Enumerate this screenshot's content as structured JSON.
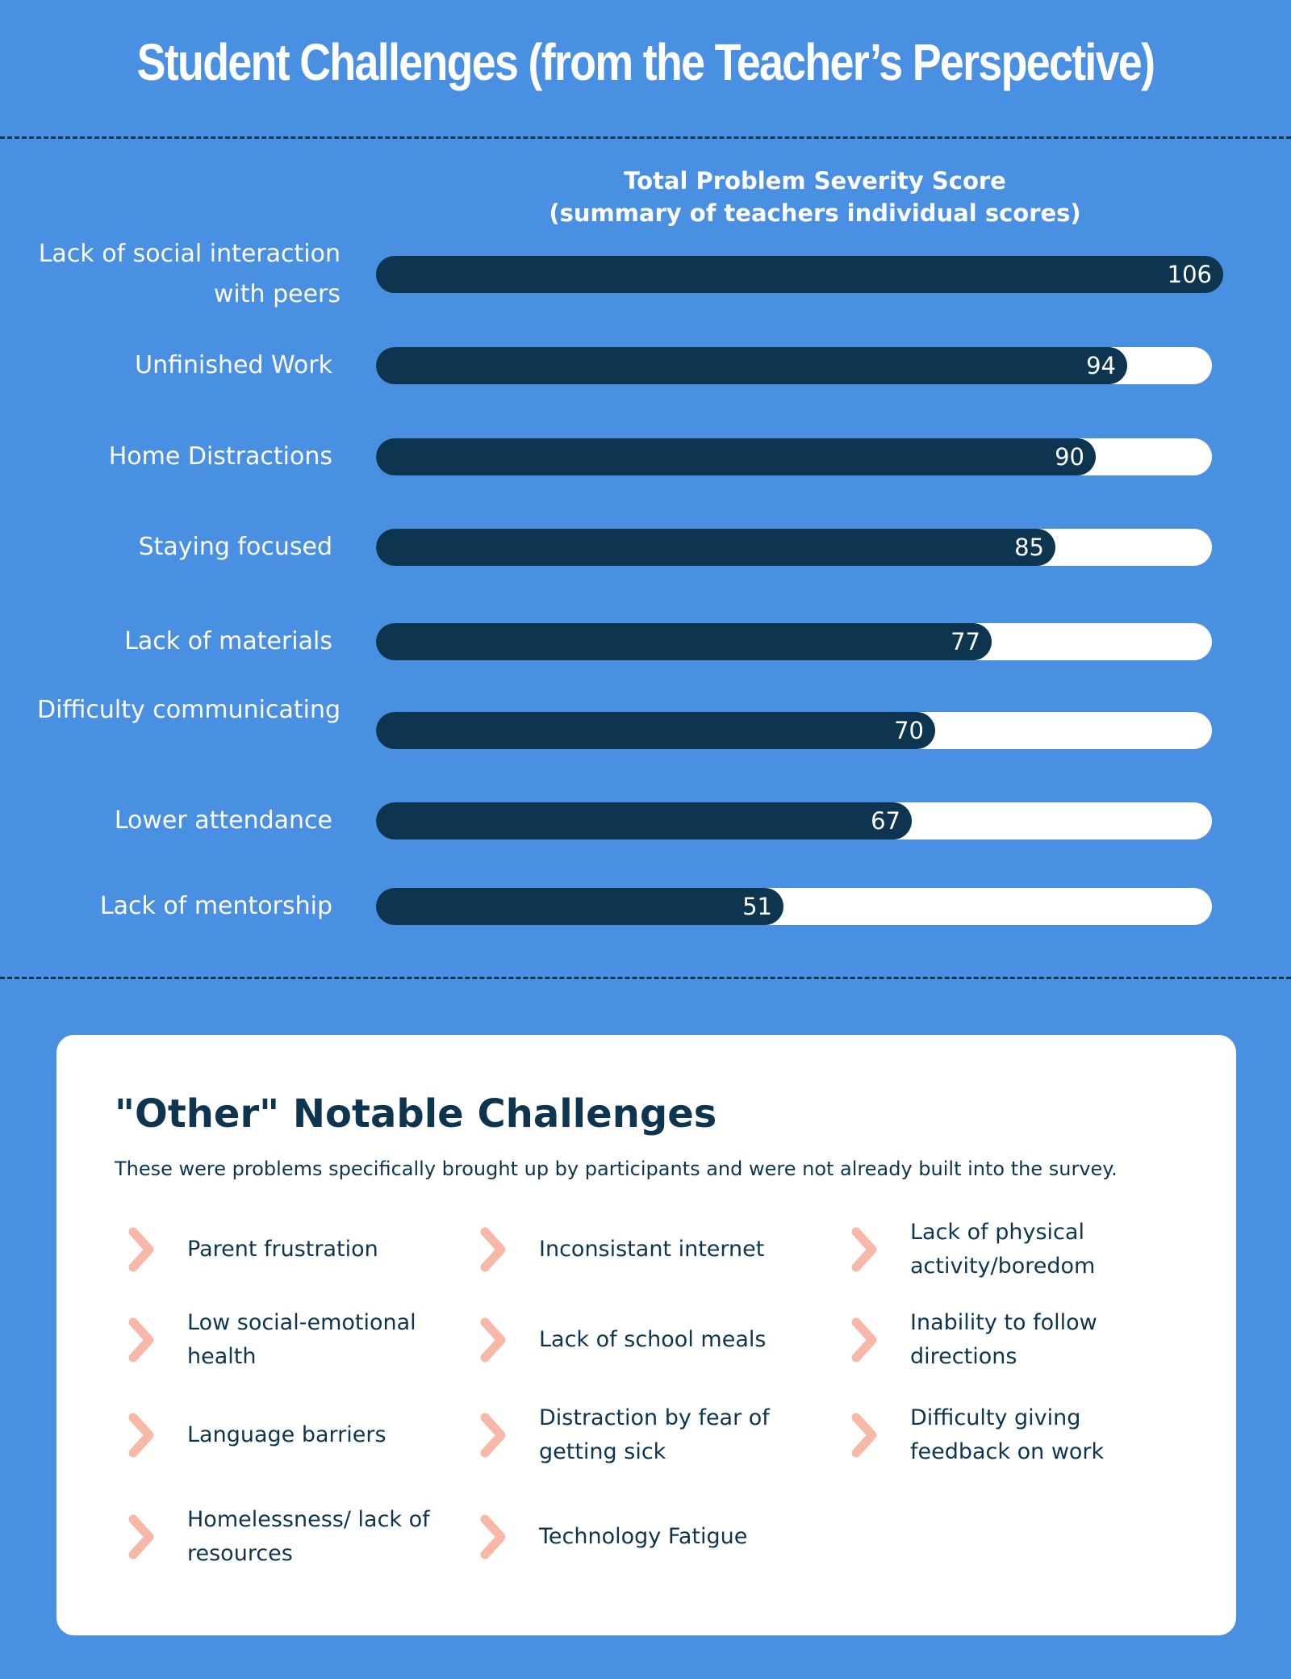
{
  "title": "Student Challenges (from the Teacher’s Perspective)",
  "colors": {
    "background": "#4a90e2",
    "bar": "#0e3550",
    "track": "#ffffff",
    "chevron": "#f7b8a8",
    "text_dark": "#0e3550"
  },
  "chart_data": {
    "type": "bar",
    "orientation": "horizontal",
    "title": "Total Problem Severity Score",
    "subtitle": "(summary of teachers individual scores)",
    "categories": [
      "Lack of social interaction with peers",
      "Unfinished Work",
      "Home Distractions",
      "Staying focused",
      "Lack of materials",
      "Difficulty communicating",
      "Lower attendance",
      "Lack of mentorship"
    ],
    "values": [
      106,
      94,
      90,
      85,
      77,
      70,
      67,
      51
    ],
    "xlim": [
      0,
      106
    ],
    "grid": false
  },
  "other": {
    "title": "\"Other\" Notable Challenges",
    "subtitle": "These were problems specifically brought up by participants and were not already built into the survey.",
    "icon": "chevron-right-icon",
    "items": [
      "Parent frustration",
      "Inconsistant internet",
      "Lack of physical activity/boredom",
      "Low social-emotional health",
      "Lack of school meals",
      "Inability to follow directions",
      "Language barriers",
      "Distraction by fear of getting sick",
      "Difficulty giving feedback on work",
      "Homelessness/ lack of resources",
      "Technology Fatigue"
    ]
  }
}
